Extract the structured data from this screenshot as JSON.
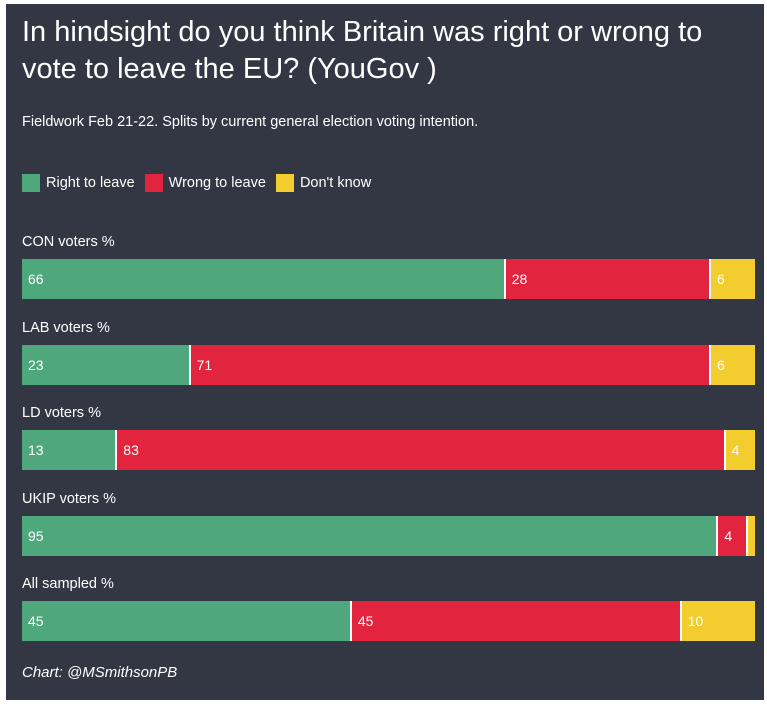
{
  "chart_data": {
    "type": "bar",
    "orientation": "horizontal",
    "stacked": true,
    "title": "In hindsight do you think Britain was right or wrong to vote to leave the EU? (YouGov )",
    "subtitle": "Fieldwork Feb 21-22. Splits by current general election voting intention.",
    "legend_position": "top-left",
    "grid": false,
    "xlim": [
      0,
      100
    ],
    "categories": [
      "CON voters %",
      "LAB voters %",
      "LD voters %",
      "UKIP voters %",
      "All sampled %"
    ],
    "series": [
      {
        "name": "Right to leave",
        "color": "#4fa77c",
        "values": [
          66,
          23,
          13,
          95,
          45
        ],
        "labels": [
          "66",
          "23",
          "13",
          "95",
          "45"
        ]
      },
      {
        "name": "Wrong to leave",
        "color": "#e3243e",
        "values": [
          28,
          71,
          83,
          4,
          45
        ],
        "labels": [
          "28",
          "71",
          "83",
          "4",
          "45"
        ]
      },
      {
        "name": "Don't know",
        "color": "#f3cd2d",
        "values": [
          6,
          6,
          4,
          1,
          10
        ],
        "labels": [
          "6",
          "6",
          "4",
          "",
          "10"
        ]
      }
    ],
    "credit": "Chart: @MSmithsonPB"
  }
}
